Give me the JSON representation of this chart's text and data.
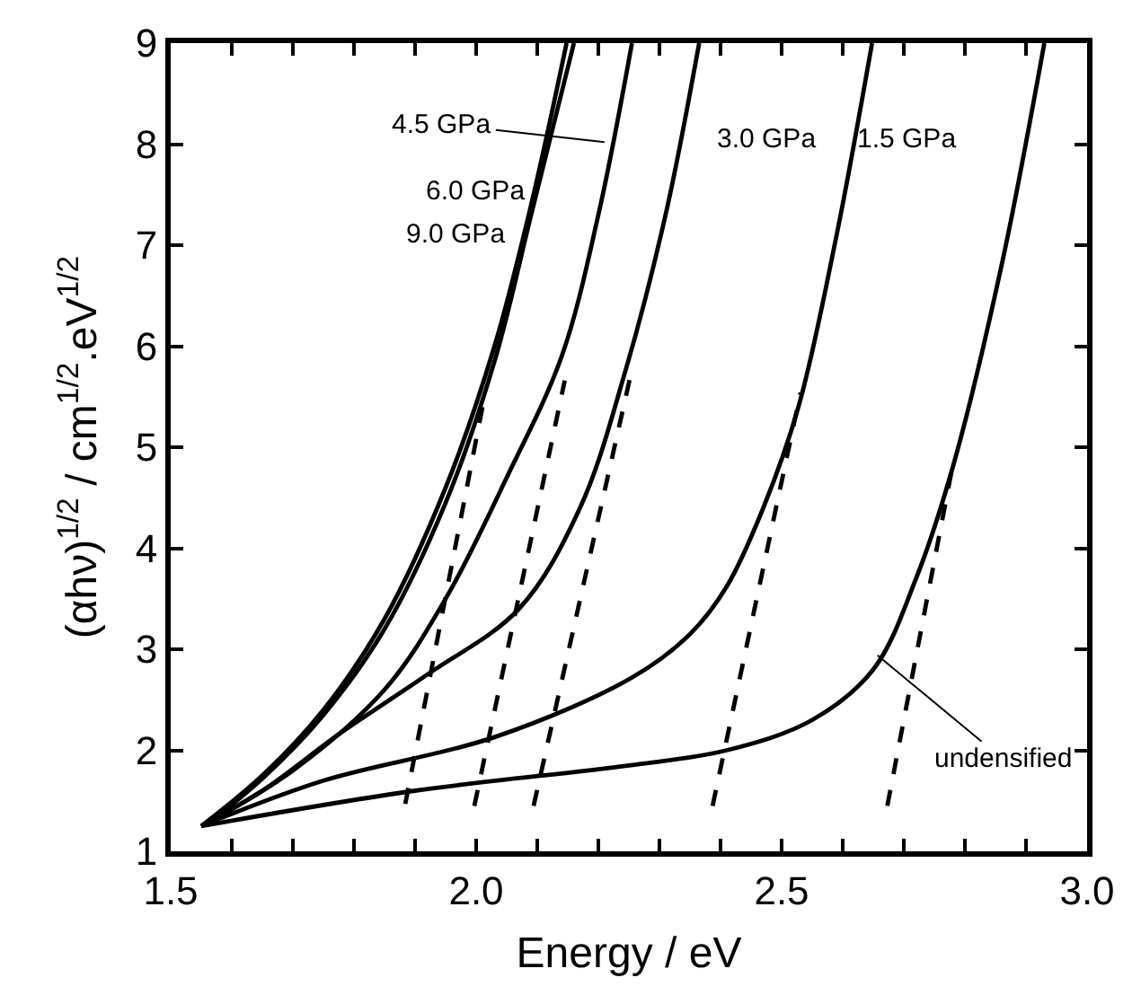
{
  "chart_data": {
    "type": "line",
    "xlabel": "Energy / eV",
    "ylabel": "(αhν)$^{1/2}$ / cm$^{1/2}$.eV$^{1/2}$",
    "xlim": [
      1.5,
      3.0
    ],
    "xticks": [
      {
        "value": 1.5,
        "label": "1.5"
      },
      {
        "value": 1.6,
        "label": null
      },
      {
        "value": 1.7,
        "label": null
      },
      {
        "value": 1.8,
        "label": null
      },
      {
        "value": 1.9,
        "label": null
      },
      {
        "value": 2.0,
        "label": "2.0"
      },
      {
        "value": 2.1,
        "label": null
      },
      {
        "value": 2.2,
        "label": null
      },
      {
        "value": 2.3,
        "label": null
      },
      {
        "value": 2.4,
        "label": null
      },
      {
        "value": 2.5,
        "label": "2.5"
      },
      {
        "value": 2.6,
        "label": null
      },
      {
        "value": 2.7,
        "label": null
      },
      {
        "value": 2.8,
        "label": null
      },
      {
        "value": 2.9,
        "label": null
      },
      {
        "value": 3.0,
        "label": "3.0"
      }
    ],
    "ylim": [
      1,
      9
    ],
    "yticks": [
      1,
      2,
      3,
      4,
      5,
      6,
      7,
      8,
      9
    ],
    "marker": "none",
    "series": [
      {
        "color": "#000000",
        "line_style": "solid",
        "x": [
          1.55,
          1.65,
          1.75,
          1.85,
          1.95,
          2.03,
          2.09,
          2.148
        ],
        "values": [
          1.25,
          1.75,
          2.4,
          3.3,
          4.6,
          6.0,
          7.4,
          9
        ]
      },
      {
        "color": "#000000",
        "line_style": "solid",
        "x": [
          1.56,
          1.65,
          1.75,
          1.85,
          1.95,
          2.03,
          2.09,
          2.16
        ],
        "values": [
          1.27,
          1.72,
          2.35,
          3.2,
          4.45,
          5.85,
          7.3,
          9
        ]
      },
      {
        "color": "#000000",
        "line_style": "solid",
        "x": [
          1.55,
          1.7,
          1.85,
          1.95,
          2.05,
          2.14,
          2.2,
          2.255
        ],
        "values": [
          1.25,
          1.8,
          2.6,
          3.5,
          4.7,
          5.9,
          7.3,
          9
        ]
      },
      {
        "color": "#000000",
        "line_style": "solid",
        "x": [
          1.55,
          1.65,
          1.78,
          1.92,
          2.07,
          2.17,
          2.245,
          2.31,
          2.365
        ],
        "values": [
          1.25,
          1.6,
          2.18,
          2.75,
          3.4,
          4.4,
          5.77,
          7.3,
          9
        ]
      },
      {
        "color": "#000000",
        "line_style": "solid",
        "x": [
          1.55,
          1.75,
          2.03,
          2.255,
          2.35,
          2.41,
          2.47,
          2.528,
          2.59,
          2.648
        ],
        "values": [
          1.25,
          1.7,
          2.13,
          2.72,
          3.15,
          3.62,
          4.4,
          5.41,
          7.1,
          9
        ]
      },
      {
        "color": "#000000",
        "line_style": "solid",
        "x": [
          1.55,
          1.9,
          2.25,
          2.41,
          2.55,
          2.65,
          2.72,
          2.78,
          2.86,
          2.93
        ],
        "values": [
          1.25,
          1.6,
          1.85,
          2.0,
          2.3,
          2.8,
          3.7,
          4.8,
          6.8,
          9
        ]
      },
      {
        "color": "#000000",
        "line_style": "dashed",
        "x": [
          1.884,
          2.013
        ],
        "values": [
          1.47,
          5.48
        ]
      },
      {
        "color": "#000000",
        "line_style": "dashed",
        "x": [
          1.997,
          2.145
        ],
        "values": [
          1.45,
          5.66
        ]
      },
      {
        "color": "#000000",
        "line_style": "dashed",
        "x": [
          2.094,
          2.255
        ],
        "values": [
          1.45,
          5.77
        ]
      },
      {
        "color": "#000000",
        "line_style": "dashed",
        "x": [
          2.387,
          2.531
        ],
        "values": [
          1.45,
          5.54
        ]
      },
      {
        "color": "#000000",
        "line_style": "dashed",
        "x": [
          2.673,
          2.78
        ],
        "values": [
          1.45,
          4.82
        ]
      }
    ],
    "annotations": [
      {
        "text": "4.5 GPa",
        "x": 2.21,
        "y": 8.02
      },
      "6.0 GPa",
      "9.0 GPa",
      "3.0 GPa",
      "1.5 GPa",
      {
        "text": "undensified",
        "x": 2.657,
        "y": 2.94
      }
    ]
  }
}
